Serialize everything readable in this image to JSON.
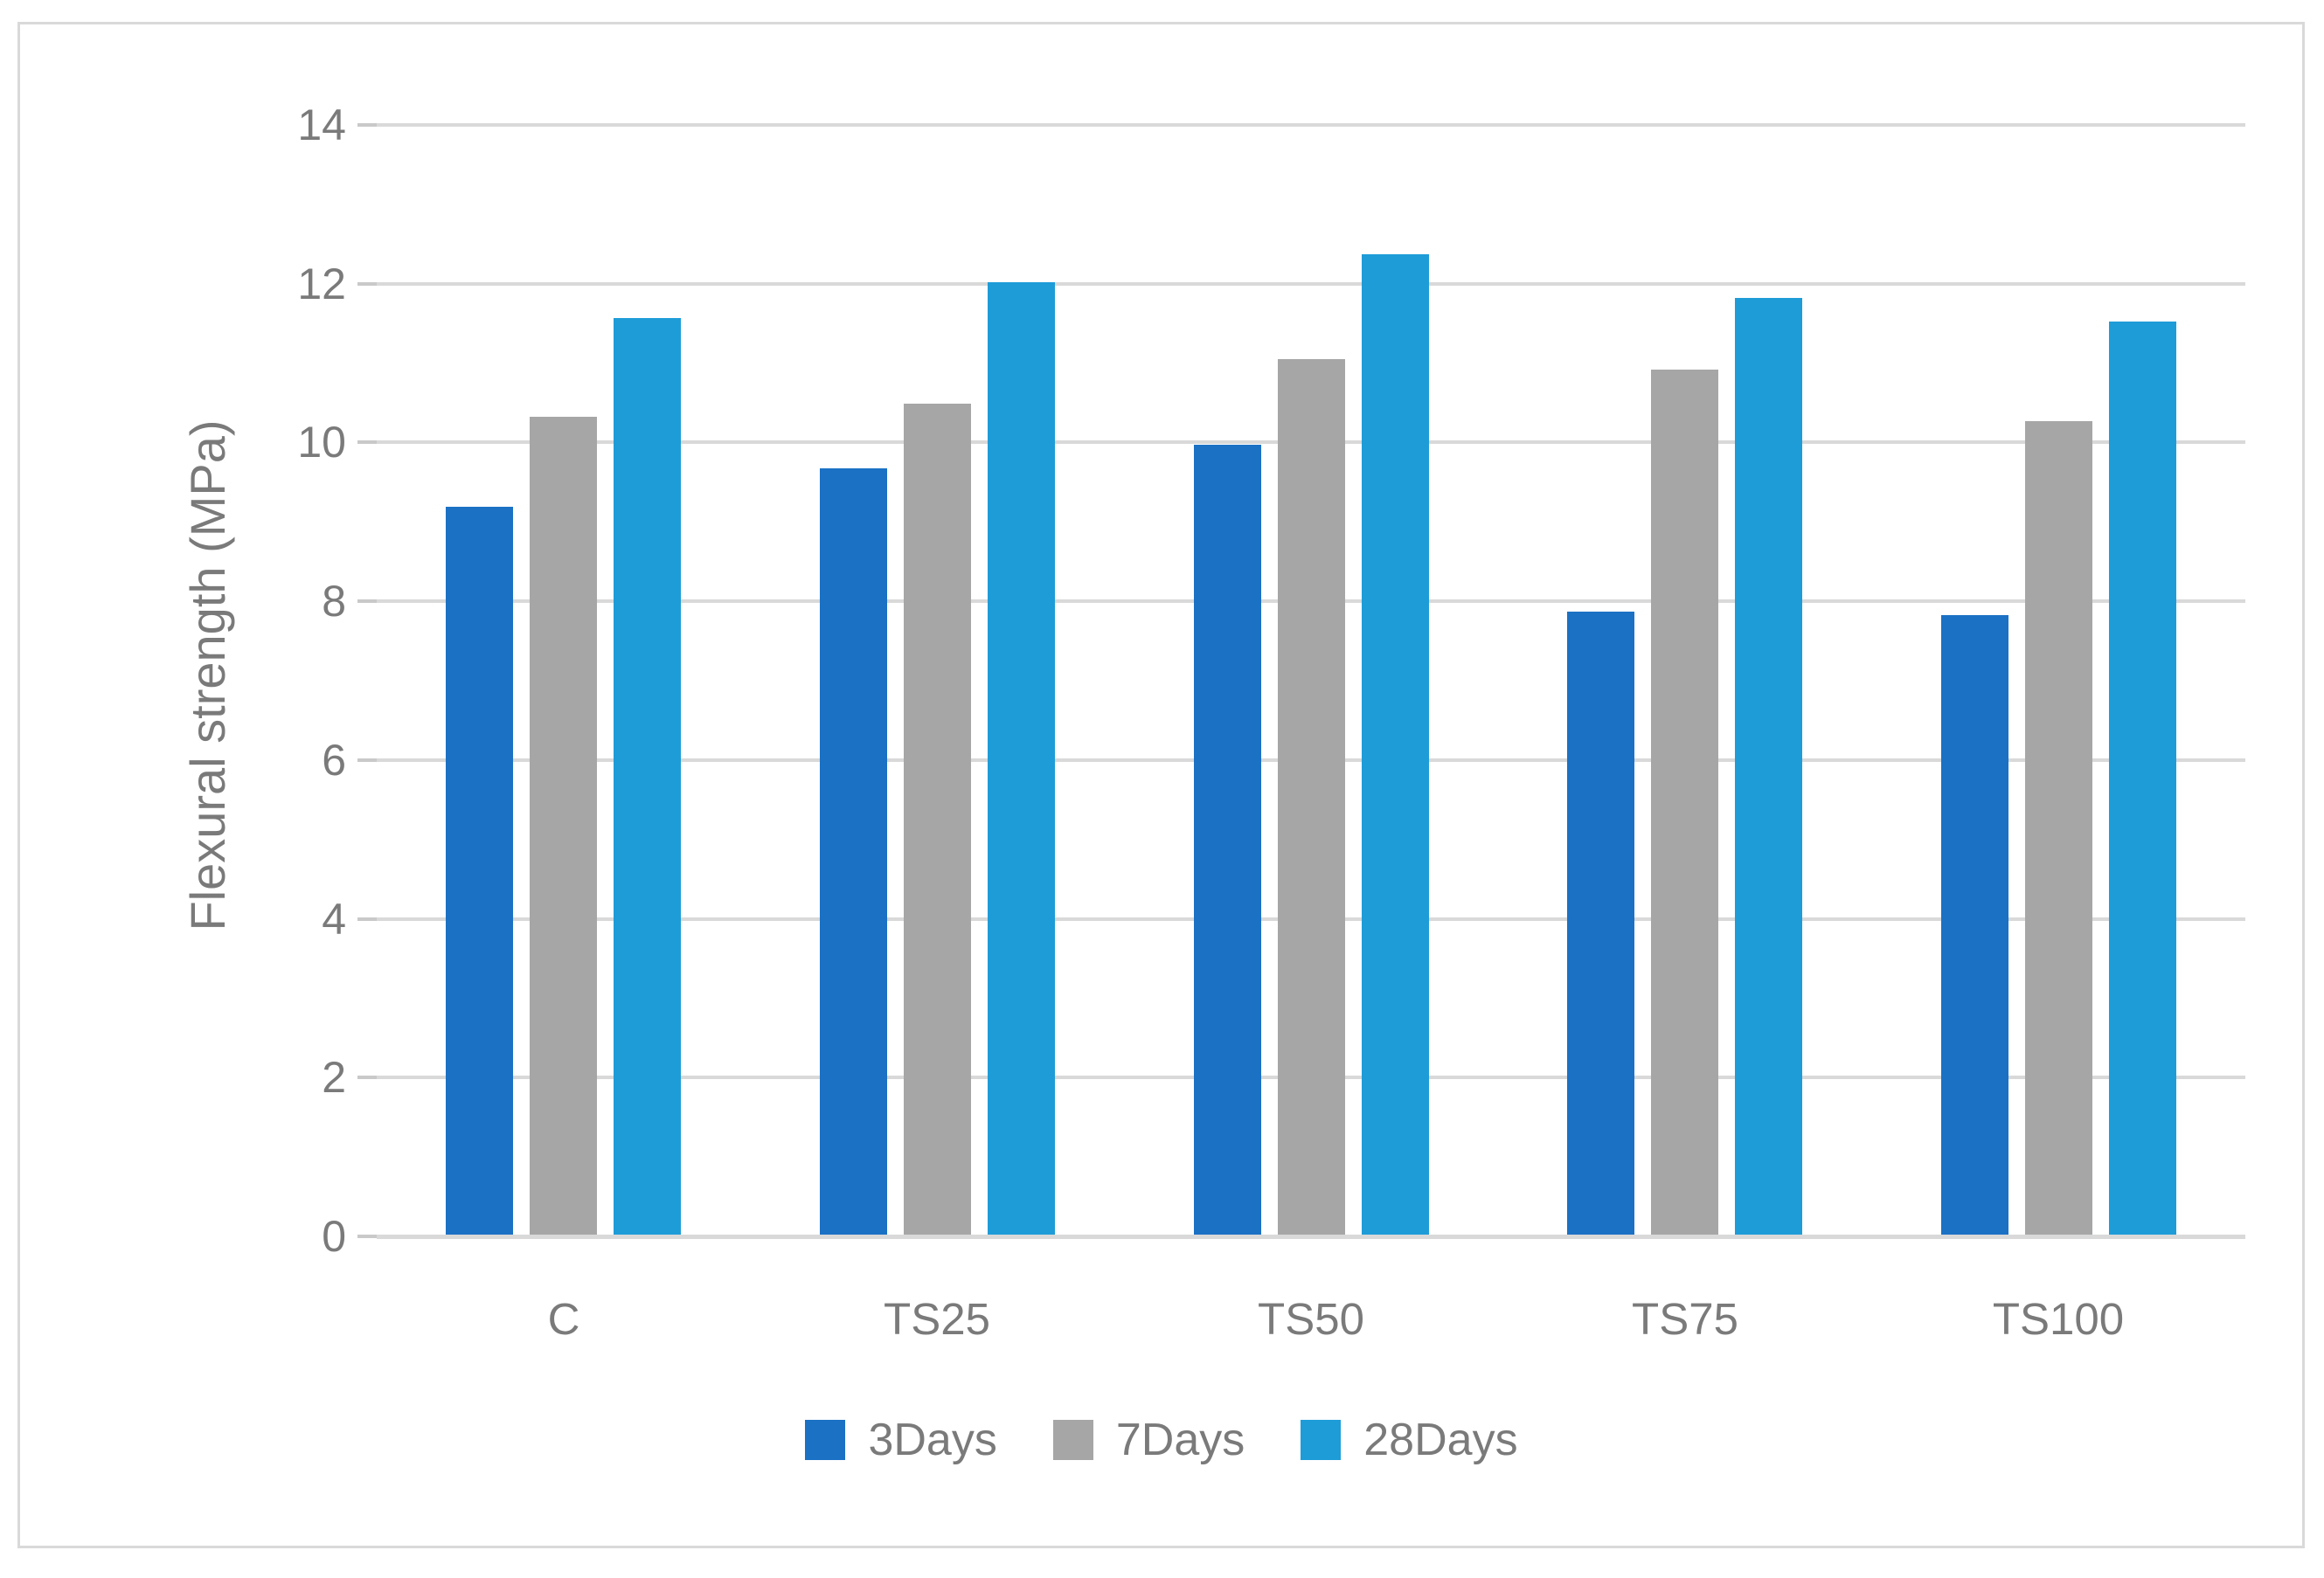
{
  "chart_data": {
    "type": "bar",
    "title": "",
    "categories": [
      "C",
      "TS25",
      "TS50",
      "TS75",
      "TS100"
    ],
    "series": [
      {
        "name": "3Days",
        "color": "#1B71C4",
        "values": [
          9.17,
          9.65,
          9.95,
          7.85,
          7.8
        ]
      },
      {
        "name": "7Days",
        "color": "#A6A6A6",
        "values": [
          10.3,
          10.47,
          11.03,
          10.9,
          10.25
        ]
      },
      {
        "name": "28Days",
        "color": "#1E9CD8",
        "values": [
          11.55,
          12.0,
          12.35,
          11.8,
          11.5
        ]
      }
    ],
    "xlabel": "",
    "ylabel": "Flexural strength (MPa)",
    "ylim": [
      0,
      14
    ],
    "yticks": [
      0,
      2,
      4,
      6,
      8,
      10,
      12,
      14
    ],
    "grid": true,
    "legend_position": "bottom-center",
    "colors": {
      "gridline": "#D9D9D9",
      "frame_border": "#D9D9D9",
      "axis_text": "#7A7A7A",
      "background": "#FFFFFF"
    }
  }
}
